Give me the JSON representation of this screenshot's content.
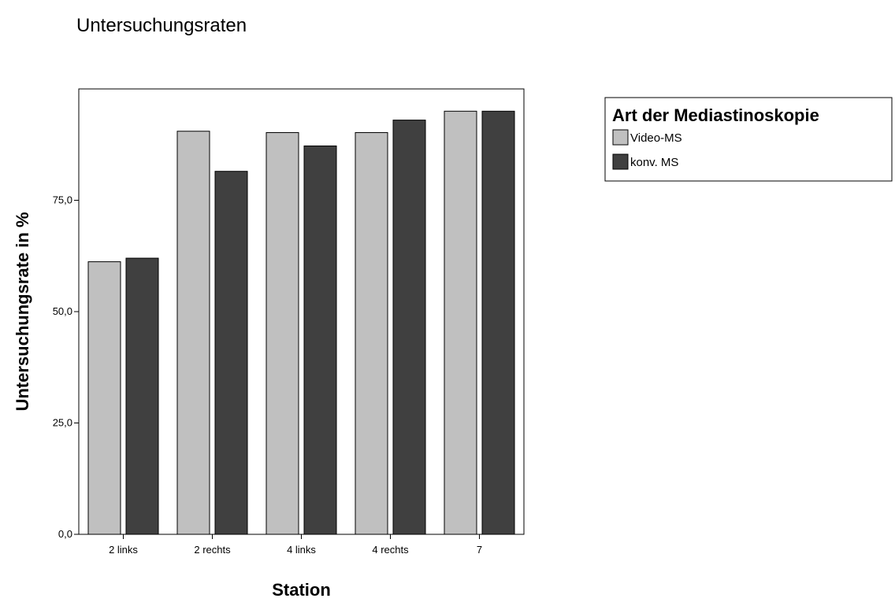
{
  "chart_data": {
    "type": "bar",
    "title": "Untersuchungsraten",
    "xlabel": "Station",
    "ylabel": "Untersuchungsrate in %",
    "categories": [
      "2 links",
      "2 rechts",
      "4 links",
      "4 rechts",
      "7"
    ],
    "series": [
      {
        "name": "Video-MS",
        "values": [
          61.2,
          90.5,
          90.2,
          90.2,
          95.0
        ],
        "color": "#c0c0c0"
      },
      {
        "name": "konv. MS",
        "values": [
          62.0,
          81.5,
          87.2,
          93.0,
          95.0
        ],
        "color": "#404040"
      }
    ],
    "ylim": [
      0,
      100
    ],
    "yticks": [
      0,
      25,
      50,
      75
    ],
    "ytick_labels": [
      "0,0",
      "25,0",
      "50,0",
      "75,0"
    ],
    "grid": false,
    "legend": {
      "title": "Art der Mediastinoskopie",
      "placement": "right"
    }
  }
}
